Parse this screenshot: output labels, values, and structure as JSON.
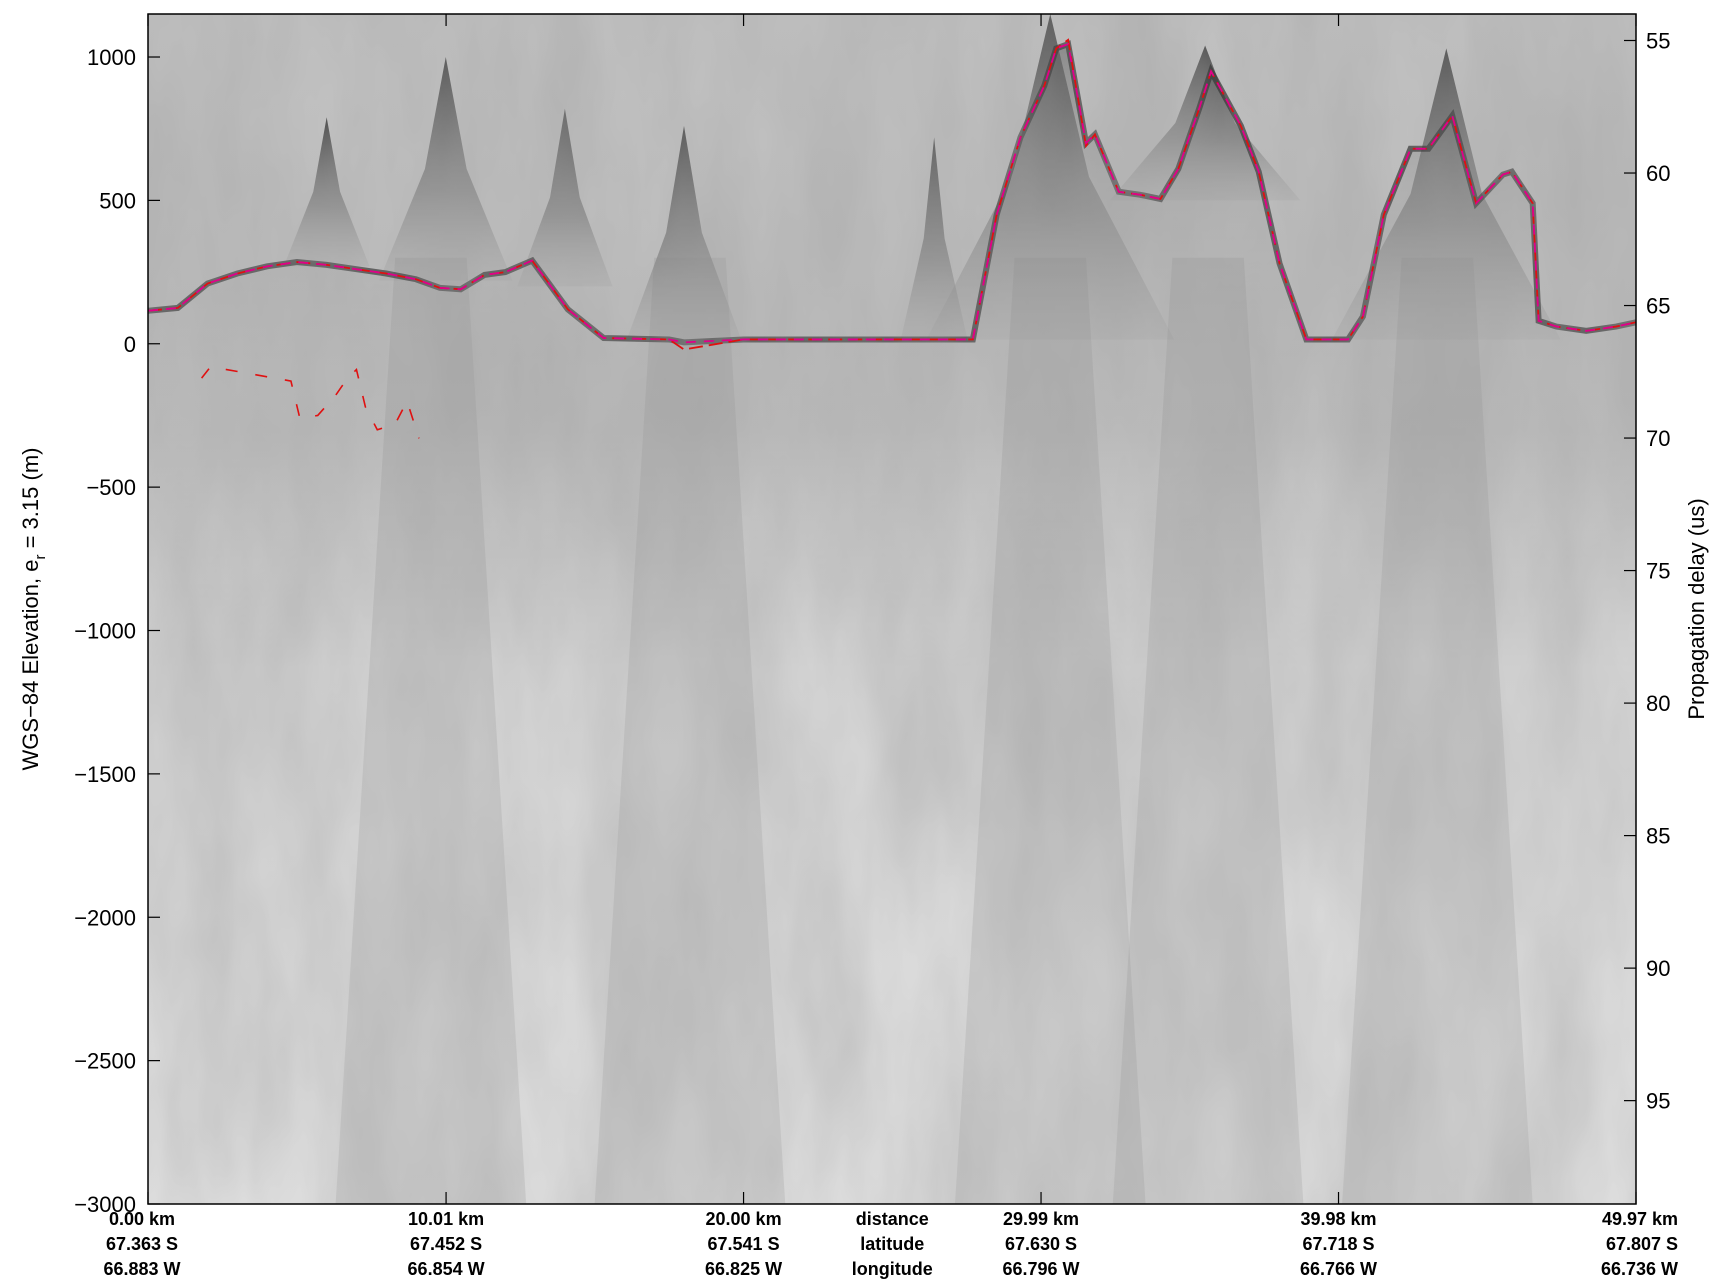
{
  "chart_data": {
    "type": "line",
    "ylabel_main": "WGS−84 Elevation, e",
    "ylabel_sub": "r",
    "ylabel_tail": " = 3.15 (m)",
    "y2label": "Propagation delay (us)",
    "ylim": [
      -3000,
      1150
    ],
    "y2lim": [
      54.0,
      98.9
    ],
    "xlim": [
      0,
      49.97
    ],
    "yticks": [
      1000,
      500,
      0,
      -500,
      -1000,
      -1500,
      -2000,
      -2500,
      -3000
    ],
    "yticklabels": [
      "1000",
      "500",
      "0",
      "−500",
      "−1000",
      "−1500",
      "−2000",
      "−2500",
      "−3000"
    ],
    "y2ticks": [
      55,
      60,
      65,
      70,
      75,
      80,
      85,
      90,
      95
    ],
    "y2ticklabels": [
      "55",
      "60",
      "65",
      "70",
      "75",
      "80",
      "85",
      "90",
      "95"
    ],
    "xticks": [
      {
        "x": 0.0,
        "distance": "0.00 km",
        "latitude": "67.363 S",
        "longitude": "66.883 W"
      },
      {
        "x": 10.01,
        "distance": "10.01 km",
        "latitude": "67.452 S",
        "longitude": "66.854 W"
      },
      {
        "x": 20.0,
        "distance": "20.00 km",
        "latitude": "67.541 S",
        "longitude": "66.825 W"
      },
      {
        "x": 29.99,
        "distance": "29.99 km",
        "latitude": "67.630 S",
        "longitude": "66.796 W"
      },
      {
        "x": 39.98,
        "distance": "39.98 km",
        "latitude": "67.718 S",
        "longitude": "66.766 W"
      },
      {
        "x": 49.97,
        "distance": "49.97 km",
        "latitude": "67.807 S",
        "longitude": "66.736 W"
      }
    ],
    "row_labels": [
      "distance",
      "latitude",
      "longitude"
    ],
    "colors": {
      "surface": "#e0008a",
      "bed": "#e01010",
      "background": "#bcbcbc",
      "texture_dark": "#3a3a3a"
    },
    "series": [
      {
        "values_x": [
          0,
          1,
          2,
          3,
          4,
          5,
          6,
          7,
          8,
          9,
          9.8,
          10.5,
          11.3,
          12,
          12.9,
          14.1,
          15.3,
          17.5,
          18,
          20,
          25,
          27,
          27.7,
          28.5,
          29.3,
          30.1,
          30.5,
          30.9,
          31.5,
          31.8,
          32.6,
          33.3,
          34,
          34.6,
          35.3,
          35.7,
          36.7,
          37.3,
          38,
          38.9,
          40.3,
          40.8,
          41.5,
          42.4,
          43,
          43.8,
          44.6,
          45.5,
          45.8,
          46.5,
          46.7,
          47.3,
          48.3,
          49.3,
          49.97
        ],
        "values_y": [
          115,
          125,
          210,
          245,
          270,
          285,
          275,
          260,
          245,
          225,
          195,
          190,
          240,
          250,
          290,
          120,
          20,
          15,
          5,
          15,
          15,
          15,
          15,
          450,
          720,
          900,
          1030,
          1045,
          700,
          730,
          530,
          520,
          505,
          610,
          820,
          950,
          760,
          600,
          280,
          15,
          15,
          95,
          450,
          680,
          680,
          795,
          490,
          590,
          600,
          490,
          80,
          60,
          45,
          60,
          75
        ]
      },
      {
        "values_x": [
          0,
          1,
          2,
          3,
          4,
          5,
          6,
          7,
          8,
          9,
          9.8,
          10.5,
          11.3,
          12,
          12.9,
          14.1,
          15.3,
          17.5,
          18,
          20,
          25,
          27,
          27.7,
          28.5,
          29.3,
          30.1,
          30.5,
          30.9,
          31.5,
          31.8,
          32.6,
          33.3,
          34,
          34.6,
          35.3,
          35.7,
          36.7,
          37.3,
          38,
          38.9,
          40.3,
          40.8,
          41.5,
          42.4,
          43,
          43.8,
          44.6,
          45.5,
          45.8,
          46.5,
          46.7,
          47.3,
          48.3,
          49.3,
          49.97
        ],
        "values_y": [
          115,
          125,
          210,
          245,
          270,
          285,
          275,
          260,
          245,
          225,
          195,
          190,
          240,
          250,
          290,
          120,
          20,
          15,
          -20,
          15,
          15,
          15,
          15,
          450,
          720,
          900,
          1030,
          1060,
          690,
          730,
          530,
          520,
          505,
          610,
          820,
          950,
          760,
          600,
          280,
          15,
          15,
          95,
          450,
          680,
          680,
          795,
          490,
          590,
          600,
          490,
          80,
          60,
          45,
          60,
          75
        ]
      },
      {
        "values_x": [
          1.8,
          2.1,
          4.8,
          5.1,
          5.7,
          6.3,
          6.7,
          7.0,
          7.3,
          7.7,
          8.3,
          8.7,
          9.1
        ],
        "values_y": [
          -120,
          -80,
          -130,
          -260,
          -250,
          -180,
          -120,
          -90,
          -220,
          -300,
          -280,
          -200,
          -330
        ]
      }
    ],
    "peaks": [
      {
        "x": 6.0,
        "y": 790,
        "halfwidth": 0.9,
        "floor": 270
      },
      {
        "x": 10.0,
        "y": 1000,
        "halfwidth": 1.4,
        "floor": 220
      },
      {
        "x": 14.0,
        "y": 820,
        "halfwidth": 1.0,
        "floor": 200
      },
      {
        "x": 18.0,
        "y": 760,
        "halfwidth": 1.2,
        "floor": 15
      },
      {
        "x": 26.4,
        "y": 720,
        "halfwidth": 0.7,
        "floor": 15
      },
      {
        "x": 30.3,
        "y": 1150,
        "halfwidth": 2.6,
        "floor": 15
      },
      {
        "x": 35.5,
        "y": 1040,
        "halfwidth": 2.0,
        "floor": 500
      },
      {
        "x": 43.6,
        "y": 1030,
        "halfwidth": 2.4,
        "floor": 15
      }
    ]
  }
}
